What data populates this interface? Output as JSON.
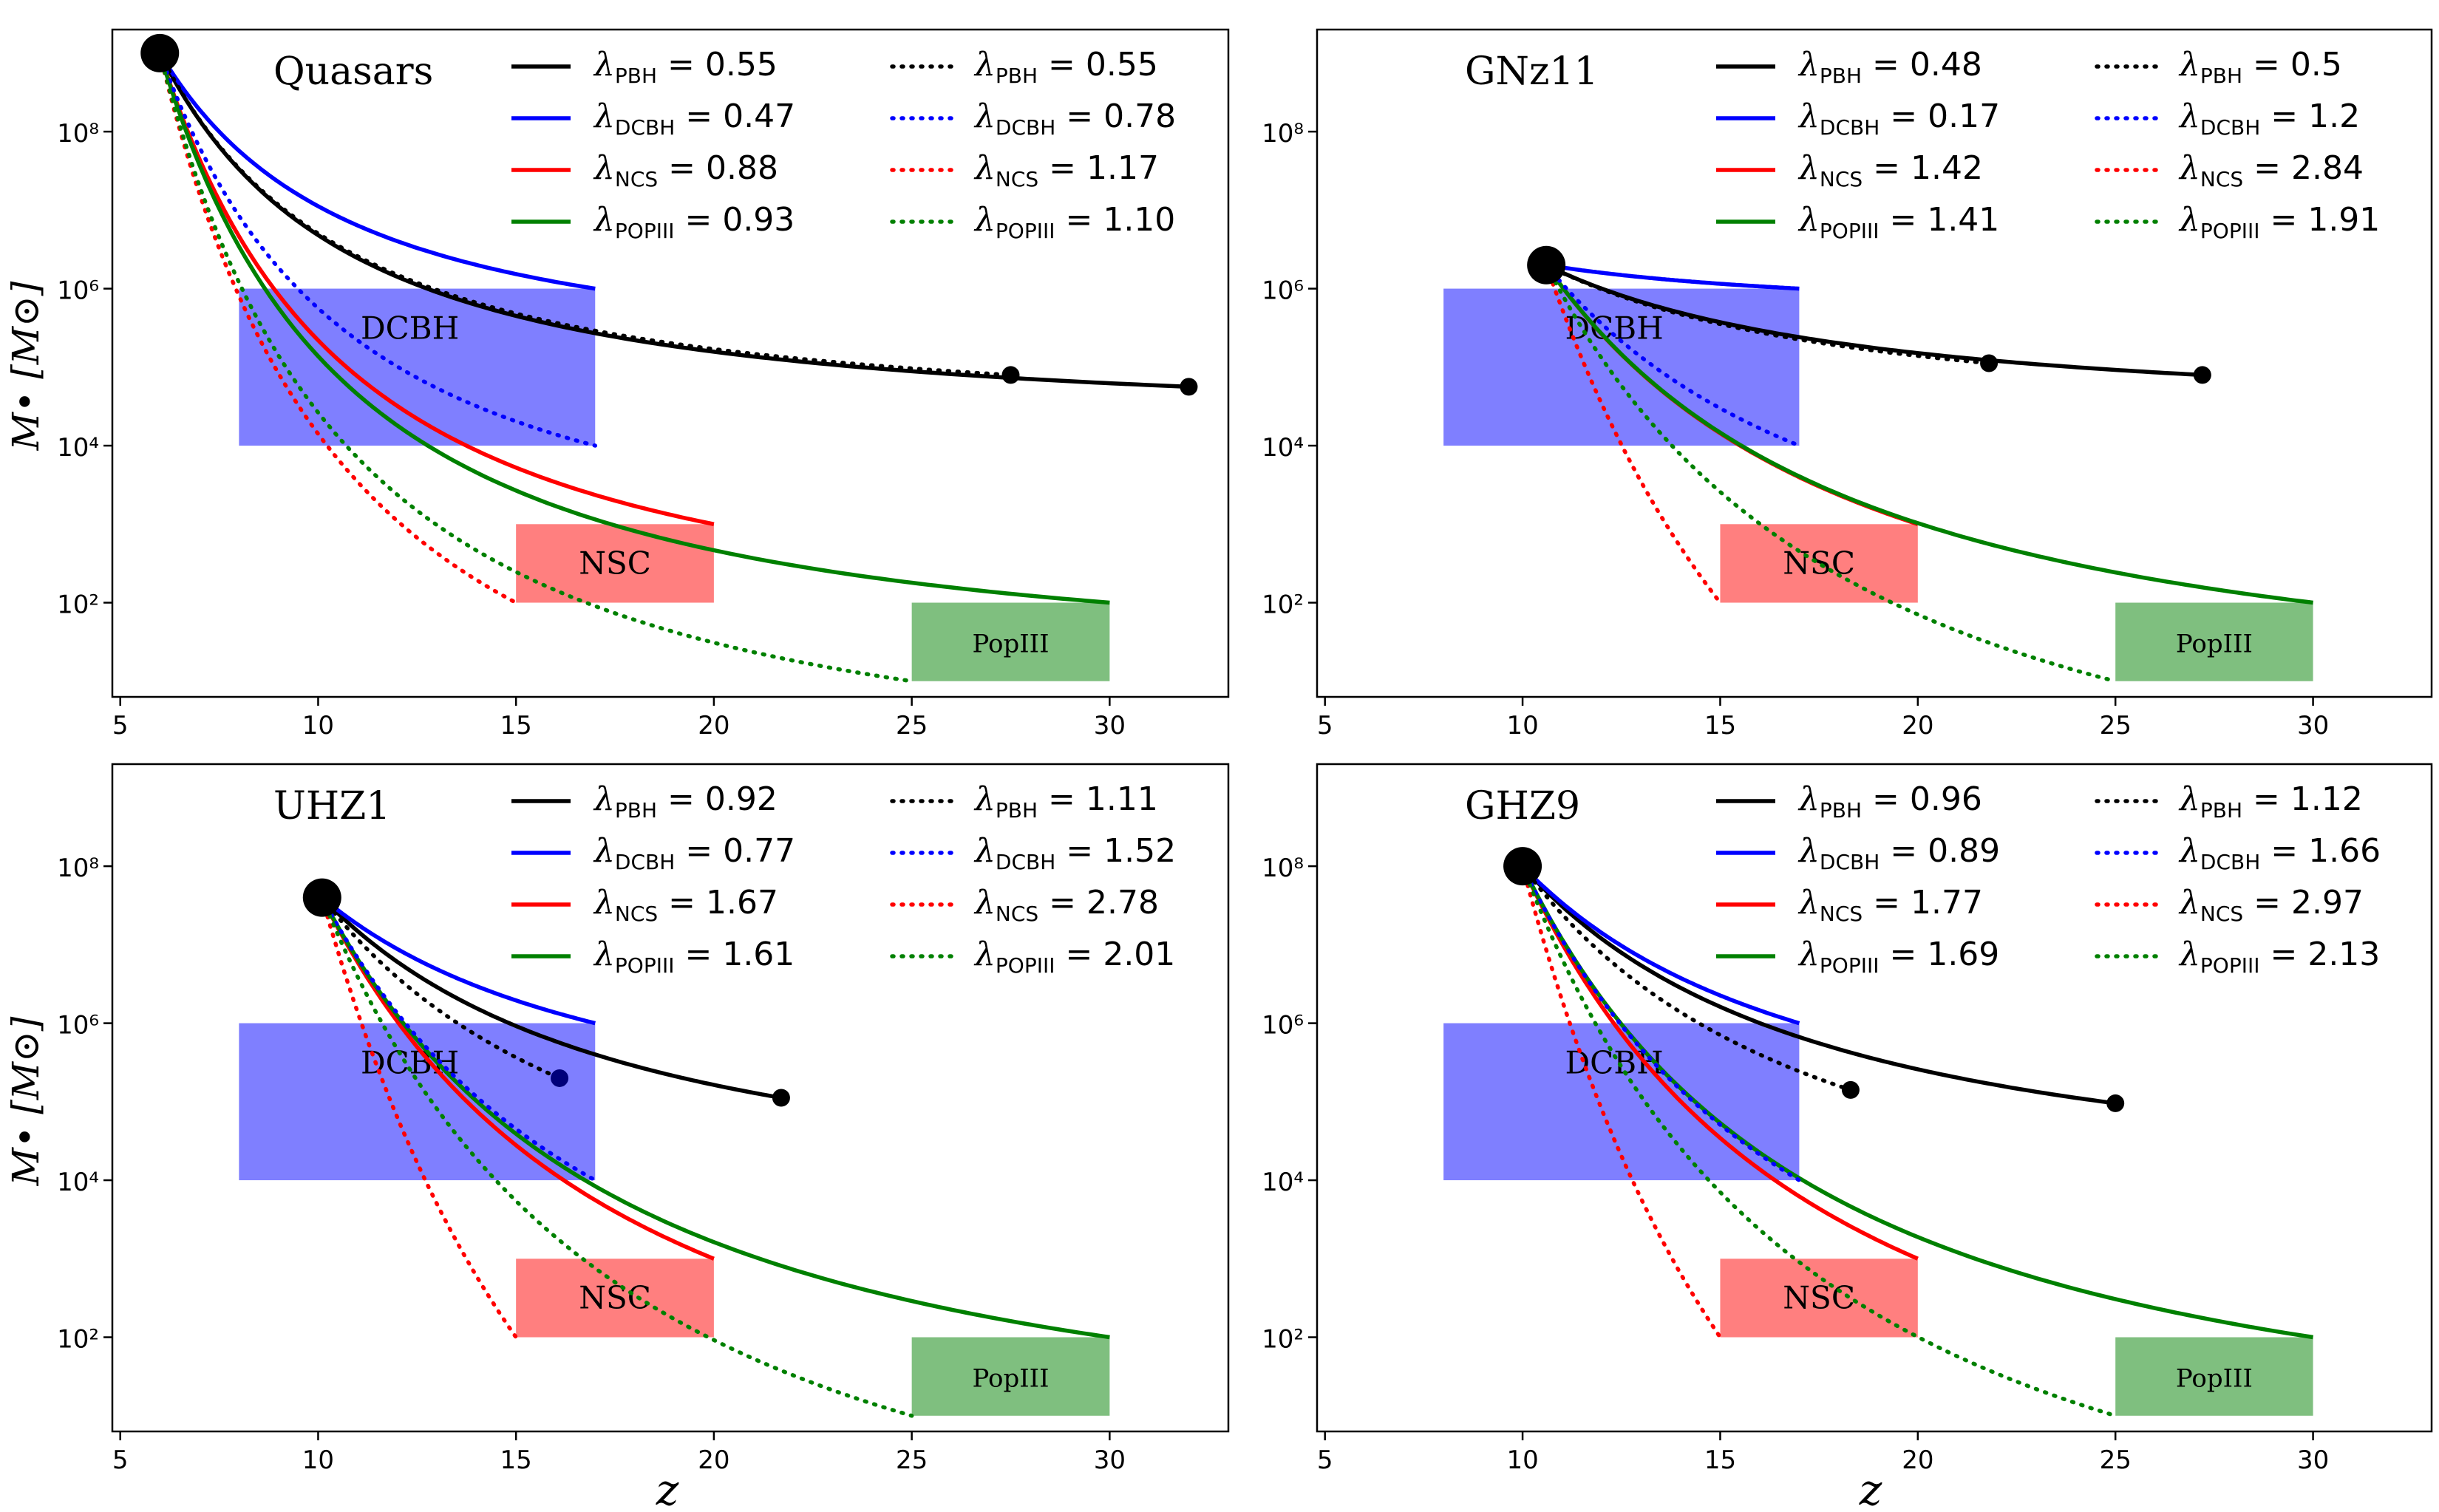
{
  "figure": {
    "ylabel": "M• [M⊙]",
    "xlabel": "z"
  },
  "chart_data": [
    {
      "type": "line",
      "title": "Quasars",
      "xlabel": "z",
      "ylabel": "M• [M⊙]",
      "xlim": [
        4.8,
        33
      ],
      "ylog_lim": [
        0.8,
        9.3
      ],
      "xticks": [
        5,
        10,
        15,
        20,
        25,
        30
      ],
      "yticks": [
        {
          "exp": 2,
          "label": "10²"
        },
        {
          "exp": 4,
          "label": "10⁴"
        },
        {
          "exp": 6,
          "label": "10⁶"
        },
        {
          "exp": 8,
          "label": "10⁸"
        }
      ],
      "seed_boxes": [
        {
          "label": "DCBH",
          "color": "#0000ff",
          "z_range": [
            8,
            17
          ],
          "logM_range": [
            4,
            6
          ]
        },
        {
          "label": "NSC",
          "color": "#ff0000",
          "z_range": [
            15,
            20
          ],
          "logM_range": [
            2,
            3
          ]
        },
        {
          "label": "PopIII",
          "color": "#008000",
          "z_range": [
            25,
            30
          ],
          "logM_range": [
            1,
            2
          ]
        }
      ],
      "observed": {
        "z": 6.0,
        "logM": 9.0
      },
      "series": [
        {
          "key": "PBH",
          "style": "solid",
          "color": "#000000",
          "label_sub": "PBH",
          "label_value": "0.55",
          "end": {
            "z": 32,
            "logM": 4.75
          }
        },
        {
          "key": "DCBH",
          "style": "solid",
          "color": "#0000ff",
          "label_sub": "DCBH",
          "label_value": "0.47",
          "end": {
            "z": 17,
            "logM": 6.0
          }
        },
        {
          "key": "NCS",
          "style": "solid",
          "color": "#ff0000",
          "label_sub": "NCS",
          "label_value": "0.88",
          "end": {
            "z": 20,
            "logM": 3.0
          }
        },
        {
          "key": "POPIII",
          "style": "solid",
          "color": "#008000",
          "label_sub": "POPIII",
          "label_value": "0.93",
          "end": {
            "z": 30,
            "logM": 2.0
          }
        },
        {
          "key": "PBH",
          "style": "dotted",
          "color": "#000000",
          "label_sub": "PBH",
          "label_value": "0.55",
          "end": {
            "z": 27.5,
            "logM": 4.9
          }
        },
        {
          "key": "DCBH",
          "style": "dotted",
          "color": "#0000ff",
          "label_sub": "DCBH",
          "label_value": "0.78",
          "end": {
            "z": 17,
            "logM": 4.0
          }
        },
        {
          "key": "NCS",
          "style": "dotted",
          "color": "#ff0000",
          "label_sub": "NCS",
          "label_value": "1.17",
          "end": {
            "z": 15,
            "logM": 2.0
          }
        },
        {
          "key": "POPIII",
          "style": "dotted",
          "color": "#008000",
          "label_sub": "POPIII",
          "label_value": "1.10",
          "end": {
            "z": 25,
            "logM": 1.0
          }
        }
      ],
      "endpoint_markers": [
        {
          "z": 27.5,
          "logM": 4.9
        },
        {
          "z": 32,
          "logM": 4.75
        }
      ]
    },
    {
      "type": "line",
      "title": "GNz11",
      "xlabel": "z",
      "ylabel": "M• [M⊙]",
      "xlim": [
        4.8,
        33
      ],
      "ylog_lim": [
        0.8,
        9.3
      ],
      "xticks": [
        5,
        10,
        15,
        20,
        25,
        30
      ],
      "yticks": [
        {
          "exp": 2,
          "label": "10²"
        },
        {
          "exp": 4,
          "label": "10⁴"
        },
        {
          "exp": 6,
          "label": "10⁶"
        },
        {
          "exp": 8,
          "label": "10⁸"
        }
      ],
      "seed_boxes": [
        {
          "label": "DCBH",
          "color": "#0000ff",
          "z_range": [
            8,
            17
          ],
          "logM_range": [
            4,
            6
          ]
        },
        {
          "label": "NSC",
          "color": "#ff0000",
          "z_range": [
            15,
            20
          ],
          "logM_range": [
            2,
            3
          ]
        },
        {
          "label": "PopIII",
          "color": "#008000",
          "z_range": [
            25,
            30
          ],
          "logM_range": [
            1,
            2
          ]
        }
      ],
      "observed": {
        "z": 10.6,
        "logM": 6.3
      },
      "series": [
        {
          "key": "PBH",
          "style": "solid",
          "color": "#000000",
          "label_sub": "PBH",
          "label_value": "0.48",
          "end": {
            "z": 27.2,
            "logM": 4.9
          }
        },
        {
          "key": "DCBH",
          "style": "solid",
          "color": "#0000ff",
          "label_sub": "DCBH",
          "label_value": "0.17",
          "end": {
            "z": 17,
            "logM": 6.0
          }
        },
        {
          "key": "NCS",
          "style": "solid",
          "color": "#ff0000",
          "label_sub": "NCS",
          "label_value": "1.42",
          "end": {
            "z": 20,
            "logM": 3.0
          }
        },
        {
          "key": "POPIII",
          "style": "solid",
          "color": "#008000",
          "label_sub": "POPIII",
          "label_value": "1.41",
          "end": {
            "z": 30,
            "logM": 2.0
          }
        },
        {
          "key": "PBH",
          "style": "dotted",
          "color": "#000000",
          "label_sub": "PBH",
          "label_value": "0.5",
          "end": {
            "z": 21.8,
            "logM": 5.05
          }
        },
        {
          "key": "DCBH",
          "style": "dotted",
          "color": "#0000ff",
          "label_sub": "DCBH",
          "label_value": "1.2",
          "end": {
            "z": 17,
            "logM": 4.0
          }
        },
        {
          "key": "NCS",
          "style": "dotted",
          "color": "#ff0000",
          "label_sub": "NCS",
          "label_value": "2.84",
          "end": {
            "z": 15,
            "logM": 2.0
          }
        },
        {
          "key": "POPIII",
          "style": "dotted",
          "color": "#008000",
          "label_sub": "POPIII",
          "label_value": "1.91",
          "end": {
            "z": 25,
            "logM": 1.0
          }
        }
      ],
      "endpoint_markers": [
        {
          "z": 21.8,
          "logM": 5.05
        },
        {
          "z": 27.2,
          "logM": 4.9
        }
      ]
    },
    {
      "type": "line",
      "title": "UHZ1",
      "xlabel": "z",
      "ylabel": "M• [M⊙]",
      "xlim": [
        4.8,
        33
      ],
      "ylog_lim": [
        0.8,
        9.3
      ],
      "xticks": [
        5,
        10,
        15,
        20,
        25,
        30
      ],
      "yticks": [
        {
          "exp": 2,
          "label": "10²"
        },
        {
          "exp": 4,
          "label": "10⁴"
        },
        {
          "exp": 6,
          "label": "10⁶"
        },
        {
          "exp": 8,
          "label": "10⁸"
        }
      ],
      "seed_boxes": [
        {
          "label": "DCBH",
          "color": "#0000ff",
          "z_range": [
            8,
            17
          ],
          "logM_range": [
            4,
            6
          ]
        },
        {
          "label": "NSC",
          "color": "#ff0000",
          "z_range": [
            15,
            20
          ],
          "logM_range": [
            2,
            3
          ]
        },
        {
          "label": "PopIII",
          "color": "#008000",
          "z_range": [
            25,
            30
          ],
          "logM_range": [
            1,
            2
          ]
        }
      ],
      "observed": {
        "z": 10.1,
        "logM": 7.6
      },
      "series": [
        {
          "key": "PBH",
          "style": "solid",
          "color": "#000000",
          "label_sub": "PBH",
          "label_value": "0.92",
          "end": {
            "z": 21.7,
            "logM": 5.05
          }
        },
        {
          "key": "DCBH",
          "style": "solid",
          "color": "#0000ff",
          "label_sub": "DCBH",
          "label_value": "0.77",
          "end": {
            "z": 17,
            "logM": 6.0
          }
        },
        {
          "key": "NCS",
          "style": "solid",
          "color": "#ff0000",
          "label_sub": "NCS",
          "label_value": "1.67",
          "end": {
            "z": 20,
            "logM": 3.0
          }
        },
        {
          "key": "POPIII",
          "style": "solid",
          "color": "#008000",
          "label_sub": "POPIII",
          "label_value": "1.61",
          "end": {
            "z": 30,
            "logM": 2.0
          }
        },
        {
          "key": "PBH",
          "style": "dotted",
          "color": "#000000",
          "label_sub": "PBH",
          "label_value": "1.11",
          "end": {
            "z": 16.1,
            "logM": 5.3
          }
        },
        {
          "key": "DCBH",
          "style": "dotted",
          "color": "#0000ff",
          "label_sub": "DCBH",
          "label_value": "1.52",
          "end": {
            "z": 17,
            "logM": 4.0
          }
        },
        {
          "key": "NCS",
          "style": "dotted",
          "color": "#ff0000",
          "label_sub": "NCS",
          "label_value": "2.78",
          "end": {
            "z": 15,
            "logM": 2.0
          }
        },
        {
          "key": "POPIII",
          "style": "dotted",
          "color": "#008000",
          "label_sub": "POPIII",
          "label_value": "2.01",
          "end": {
            "z": 25,
            "logM": 1.0
          }
        }
      ],
      "endpoint_markers": [
        {
          "z": 16.1,
          "logM": 5.3,
          "color": "#00007a"
        },
        {
          "z": 21.7,
          "logM": 5.05
        }
      ]
    },
    {
      "type": "line",
      "title": "GHZ9",
      "xlabel": "z",
      "ylabel": "M• [M⊙]",
      "xlim": [
        4.8,
        33
      ],
      "ylog_lim": [
        0.8,
        9.3
      ],
      "xticks": [
        5,
        10,
        15,
        20,
        25,
        30
      ],
      "yticks": [
        {
          "exp": 2,
          "label": "10²"
        },
        {
          "exp": 4,
          "label": "10⁴"
        },
        {
          "exp": 6,
          "label": "10⁶"
        },
        {
          "exp": 8,
          "label": "10⁸"
        }
      ],
      "seed_boxes": [
        {
          "label": "DCBH",
          "color": "#0000ff",
          "z_range": [
            8,
            17
          ],
          "logM_range": [
            4,
            6
          ]
        },
        {
          "label": "NSC",
          "color": "#ff0000",
          "z_range": [
            15,
            20
          ],
          "logM_range": [
            2,
            3
          ]
        },
        {
          "label": "PopIII",
          "color": "#008000",
          "z_range": [
            25,
            30
          ],
          "logM_range": [
            1,
            2
          ]
        }
      ],
      "observed": {
        "z": 10.0,
        "logM": 8.0
      },
      "series": [
        {
          "key": "PBH",
          "style": "solid",
          "color": "#000000",
          "label_sub": "PBH",
          "label_value": "0.96",
          "end": {
            "z": 25.0,
            "logM": 4.98
          }
        },
        {
          "key": "DCBH",
          "style": "solid",
          "color": "#0000ff",
          "label_sub": "DCBH",
          "label_value": "0.89",
          "end": {
            "z": 17,
            "logM": 6.0
          }
        },
        {
          "key": "NCS",
          "style": "solid",
          "color": "#ff0000",
          "label_sub": "NCS",
          "label_value": "1.77",
          "end": {
            "z": 20,
            "logM": 3.0
          }
        },
        {
          "key": "POPIII",
          "style": "solid",
          "color": "#008000",
          "label_sub": "POPIII",
          "label_value": "1.69",
          "end": {
            "z": 30,
            "logM": 2.0
          }
        },
        {
          "key": "PBH",
          "style": "dotted",
          "color": "#000000",
          "label_sub": "PBH",
          "label_value": "1.12",
          "end": {
            "z": 18.3,
            "logM": 5.15
          }
        },
        {
          "key": "DCBH",
          "style": "dotted",
          "color": "#0000ff",
          "label_sub": "DCBH",
          "label_value": "1.66",
          "end": {
            "z": 17,
            "logM": 4.0
          }
        },
        {
          "key": "NCS",
          "style": "dotted",
          "color": "#ff0000",
          "label_sub": "NCS",
          "label_value": "2.97",
          "end": {
            "z": 15,
            "logM": 2.0
          }
        },
        {
          "key": "POPIII",
          "style": "dotted",
          "color": "#008000",
          "label_sub": "POPIII",
          "label_value": "2.13",
          "end": {
            "z": 25,
            "logM": 1.0
          }
        }
      ],
      "endpoint_markers": [
        {
          "z": 18.3,
          "logM": 5.15
        },
        {
          "z": 25.0,
          "logM": 4.98
        }
      ]
    }
  ]
}
